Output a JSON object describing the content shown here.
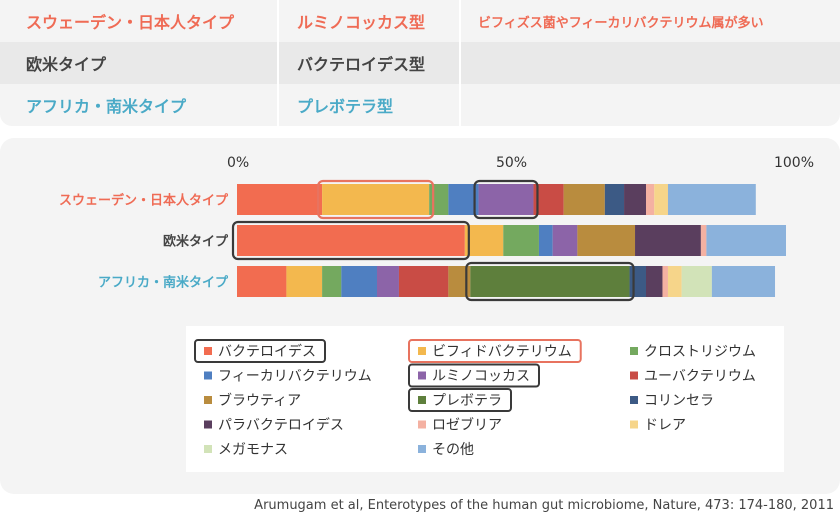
{
  "types_table": {
    "rows": [
      {
        "type": "スウェーデン・日本人タイプ",
        "genus": "ルミノコッカス型",
        "note": "ビフィズス菌やフィーカリバクテリウム属が多い",
        "color": "#ef6b55"
      },
      {
        "type": "欧米タイプ",
        "genus": "バクテロイデス型",
        "note": "",
        "color": "#444444"
      },
      {
        "type": "アフリカ・南米タイプ",
        "genus": "プレボテラ型",
        "note": "",
        "color": "#4aaac7"
      }
    ]
  },
  "chart_data": {
    "type": "bar",
    "orientation": "horizontal",
    "stacked": "100%",
    "categories": [
      "スウェーデン・日本人タイプ",
      "欧米タイプ",
      "アフリカ・南米タイプ"
    ],
    "category_colors": [
      "#ef6b55",
      "#444444",
      "#4aaac7"
    ],
    "x_ticks": [
      "0%",
      "50%",
      "100%"
    ],
    "xlim": [
      0,
      100
    ],
    "series": [
      {
        "name": "バクテロイデス",
        "color": "#f26c50",
        "values": [
          15.5,
          41.5,
          9
        ]
      },
      {
        "name": "ビフィドバクテリウム",
        "color": "#f3b84e",
        "values": [
          19.5,
          7,
          6.5
        ]
      },
      {
        "name": "クロストリジウム",
        "color": "#74a95f",
        "values": [
          3.5,
          6.5,
          3.5
        ]
      },
      {
        "name": "フィーカリバクテリウム",
        "color": "#4f7fc1",
        "values": [
          5.5,
          2.5,
          6.5
        ]
      },
      {
        "name": "ルミノコッカス",
        "color": "#8c64a8",
        "values": [
          10,
          4.5,
          4
        ]
      },
      {
        "name": "ユーバクテリウム",
        "color": "#c94c45",
        "values": [
          5.5,
          0,
          9
        ]
      },
      {
        "name": "ブラウティア",
        "color": "#b98c3e",
        "values": [
          7.5,
          10.5,
          4
        ]
      },
      {
        "name": "プレボテラ",
        "color": "#5e7f3c",
        "values": [
          0,
          0,
          29
        ]
      },
      {
        "name": "コリンセラ",
        "color": "#3c5a85",
        "values": [
          3.5,
          0,
          3
        ]
      },
      {
        "name": "パラバクテロイデス",
        "color": "#5a3e5e",
        "values": [
          4,
          12,
          3
        ]
      },
      {
        "name": "ロゼブリア",
        "color": "#f4b1a2",
        "values": [
          1.5,
          1,
          1
        ]
      },
      {
        "name": "ドレア",
        "color": "#f6d58a",
        "values": [
          2.5,
          0,
          2.5
        ]
      },
      {
        "name": "メガモナス",
        "color": "#d2e3b8",
        "values": [
          0,
          0,
          5.5
        ]
      },
      {
        "name": "その他",
        "color": "#8bb2dc",
        "values": [
          16,
          14.5,
          11.5
        ]
      }
    ],
    "highlights": [
      {
        "category": "スウェーデン・日本人タイプ",
        "series": "ビフィドバクテリウム",
        "color": "#e8735f"
      },
      {
        "category": "スウェーデン・日本人タイプ",
        "series": "ルミノコッカス",
        "color": "#3a3a3a"
      },
      {
        "category": "欧米タイプ",
        "series": "バクテロイデス",
        "color": "#3a3a3a"
      },
      {
        "category": "アフリカ・南米タイプ",
        "series": "プレボテラ",
        "color": "#3a3a3a"
      }
    ],
    "legend_highlights": [
      {
        "series": "バクテロイデス",
        "color": "#3a3a3a"
      },
      {
        "series": "ビフィドバクテリウム",
        "color": "#e8735f"
      },
      {
        "series": "ルミノコッカス",
        "color": "#3a3a3a"
      },
      {
        "series": "プレボテラ",
        "color": "#3a3a3a"
      }
    ],
    "legend_position": "bottom",
    "grid": false
  },
  "citation": "Arumugam et al, Enterotypes of the human gut microbiome, Nature, 473: 174-180, 2011"
}
